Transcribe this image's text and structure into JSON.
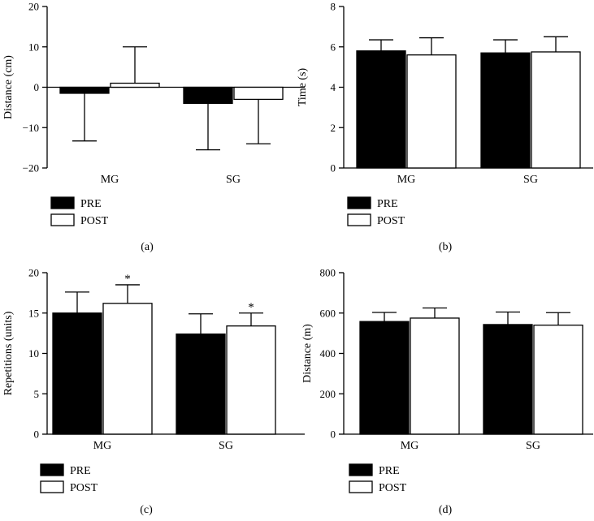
{
  "colors": {
    "pre": "#000000",
    "post": "#ffffff",
    "stroke": "#000000"
  },
  "chart_data": [
    {
      "type": "bar",
      "panel_label": "(a)",
      "categories": [
        "MG",
        "SG"
      ],
      "ylabel": "Distance (cm)",
      "ylim": [
        -20,
        20
      ],
      "yticks": [
        -20,
        -10,
        0,
        10,
        20
      ],
      "ytick_labels": [
        "−20",
        "−10",
        "0",
        "10",
        "20"
      ],
      "series": [
        {
          "name": "PRE",
          "values": [
            -1.5,
            -4
          ],
          "errors": [
            11.8,
            11.5
          ]
        },
        {
          "name": "POST",
          "values": [
            1,
            -3
          ],
          "errors": [
            9,
            11
          ]
        }
      ],
      "annotations": [
        "",
        "",
        "",
        ""
      ],
      "legend": "bottom-left"
    },
    {
      "type": "bar",
      "panel_label": "(b)",
      "categories": [
        "MG",
        "SG"
      ],
      "ylabel": "Time (s)",
      "ylim": [
        0,
        8
      ],
      "yticks": [
        0,
        2,
        4,
        6,
        8
      ],
      "ytick_labels": [
        "0",
        "2",
        "4",
        "6",
        "8"
      ],
      "series": [
        {
          "name": "PRE",
          "values": [
            5.8,
            5.7
          ],
          "errors": [
            0.55,
            0.65
          ]
        },
        {
          "name": "POST",
          "values": [
            5.6,
            5.75
          ],
          "errors": [
            0.85,
            0.75
          ]
        }
      ],
      "annotations": [
        "",
        "",
        "",
        ""
      ],
      "legend": "bottom-left"
    },
    {
      "type": "bar",
      "panel_label": "(c)",
      "categories": [
        "MG",
        "SG"
      ],
      "ylabel": "Repetitions (units)",
      "ylim": [
        0,
        20
      ],
      "yticks": [
        0,
        5,
        10,
        15,
        20
      ],
      "ytick_labels": [
        "0",
        "5",
        "10",
        "15",
        "20"
      ],
      "series": [
        {
          "name": "PRE",
          "values": [
            15,
            12.4
          ],
          "errors": [
            2.6,
            2.5
          ]
        },
        {
          "name": "POST",
          "values": [
            16.2,
            13.4
          ],
          "errors": [
            2.3,
            1.6
          ]
        }
      ],
      "annotations": [
        "",
        "",
        "*",
        "*"
      ],
      "legend": "bottom-left"
    },
    {
      "type": "bar",
      "panel_label": "(d)",
      "categories": [
        "MG",
        "SG"
      ],
      "ylabel": "Distance (m)",
      "ylim": [
        0,
        800
      ],
      "yticks": [
        0,
        200,
        400,
        600,
        800
      ],
      "ytick_labels": [
        "0",
        "200",
        "400",
        "600",
        "800"
      ],
      "series": [
        {
          "name": "PRE",
          "values": [
            558,
            543
          ],
          "errors": [
            45,
            62
          ]
        },
        {
          "name": "POST",
          "values": [
            575,
            540
          ],
          "errors": [
            50,
            62
          ]
        }
      ],
      "annotations": [
        "",
        "",
        "",
        ""
      ],
      "legend": "bottom-left"
    }
  ]
}
